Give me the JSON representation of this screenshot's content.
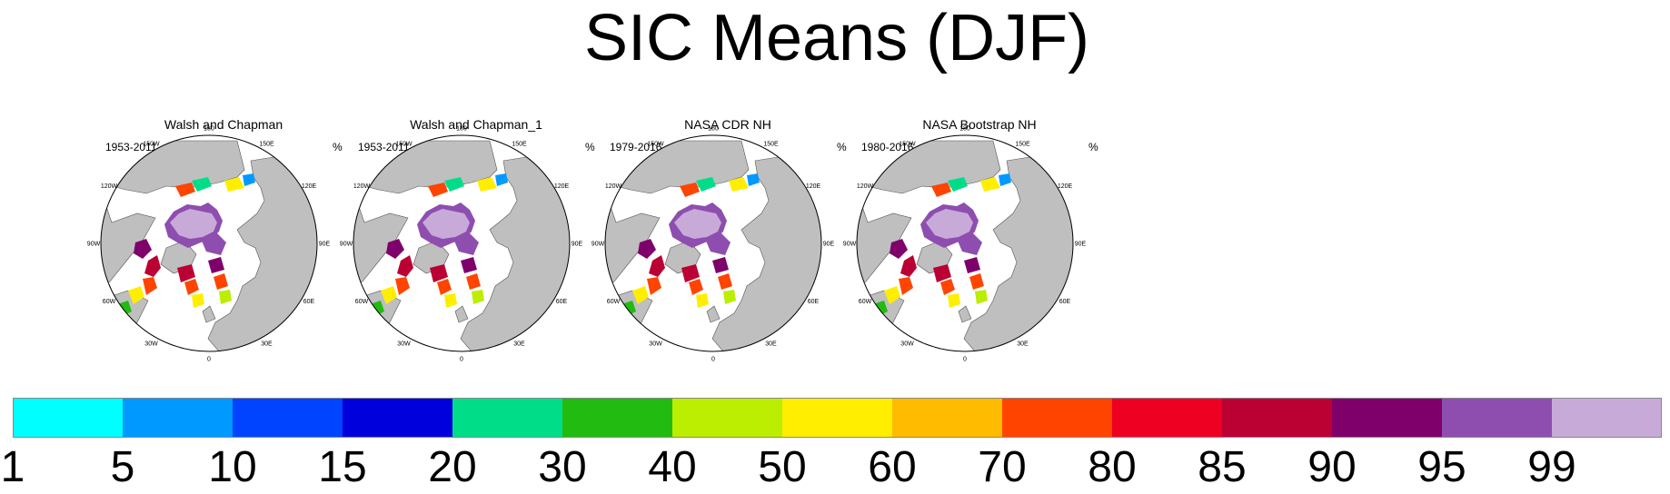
{
  "title": "SIC Means (DJF)",
  "panels": [
    {
      "title": "Walsh and Chapman",
      "period": "1953-2011",
      "unit": "%"
    },
    {
      "title": "Walsh and Chapman_1",
      "period": "1953-2011",
      "unit": "%"
    },
    {
      "title": "NASA CDR NH",
      "period": "1979-2016",
      "unit": "%"
    },
    {
      "title": "NASA Bootstrap NH",
      "period": "1980-2016",
      "unit": "%"
    }
  ],
  "longitude_labels": [
    "180",
    "150E",
    "120E",
    "90E",
    "60E",
    "30E",
    "0",
    "30W",
    "60W",
    "90W",
    "120W",
    "150W"
  ],
  "chart_data": {
    "type": "heatmap",
    "title": "SIC Means (DJF)",
    "variable": "SIC",
    "unit": "%",
    "colorbar": {
      "tick_labels": [
        "1",
        "5",
        "10",
        "15",
        "20",
        "30",
        "40",
        "50",
        "60",
        "70",
        "80",
        "85",
        "90",
        "95",
        "99"
      ],
      "colors": [
        "#00ffff",
        "#0099ff",
        "#0044ff",
        "#0000dd",
        "#00dd88",
        "#22bb11",
        "#bbee00",
        "#ffee00",
        "#ffbb00",
        "#ff4400",
        "#ee0022",
        "#bb0033",
        "#7f006a",
        "#8e4eb0",
        "#c8aad8"
      ]
    },
    "colors": {
      "land": "#bfbfbf",
      "ocean": "#ffffff"
    }
  }
}
